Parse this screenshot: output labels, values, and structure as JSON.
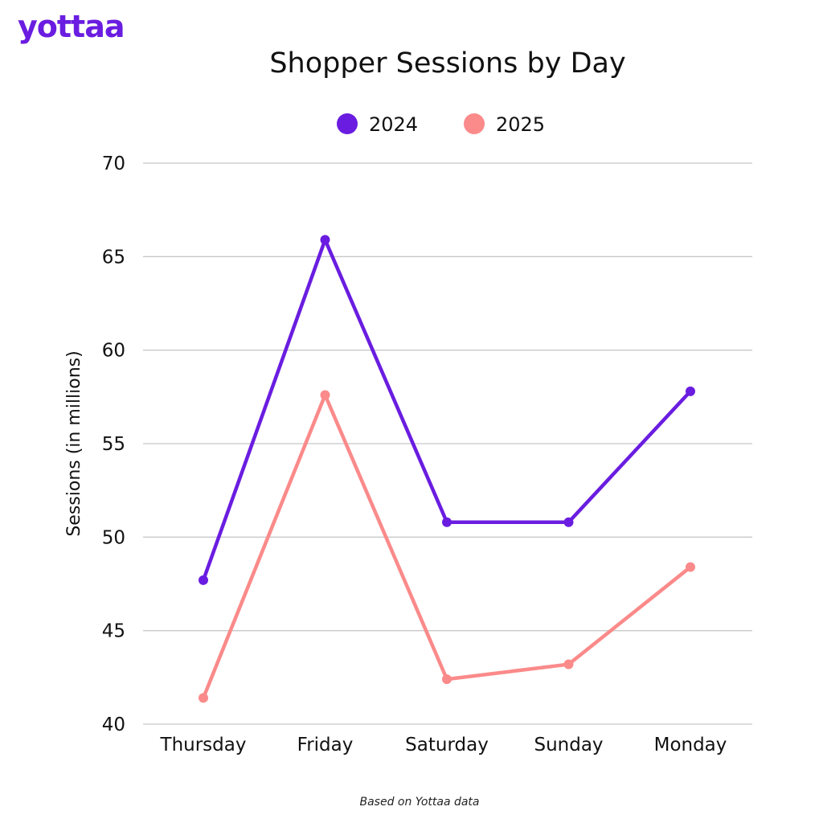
{
  "brand": {
    "logo_text": "yottaa",
    "logo_color": "#6a1de0"
  },
  "footnote": "Based on Yottaa data",
  "chart_data": {
    "type": "line",
    "title": "Shopper Sessions by Day",
    "xlabel": "",
    "ylabel": "Sessions (in millions)",
    "categories": [
      "Thursday",
      "Friday",
      "Saturday",
      "Sunday",
      "Monday"
    ],
    "ylim": [
      40,
      70
    ],
    "yticks": [
      40,
      45,
      50,
      55,
      60,
      65,
      70
    ],
    "grid": true,
    "legend_position": "top-center",
    "series": [
      {
        "name": "2024",
        "color": "#6a1de0",
        "values": [
          47.7,
          65.9,
          50.8,
          50.8,
          57.8
        ]
      },
      {
        "name": "2025",
        "color": "#fb8a8a",
        "values": [
          41.4,
          57.6,
          42.4,
          43.2,
          48.4
        ]
      }
    ]
  }
}
